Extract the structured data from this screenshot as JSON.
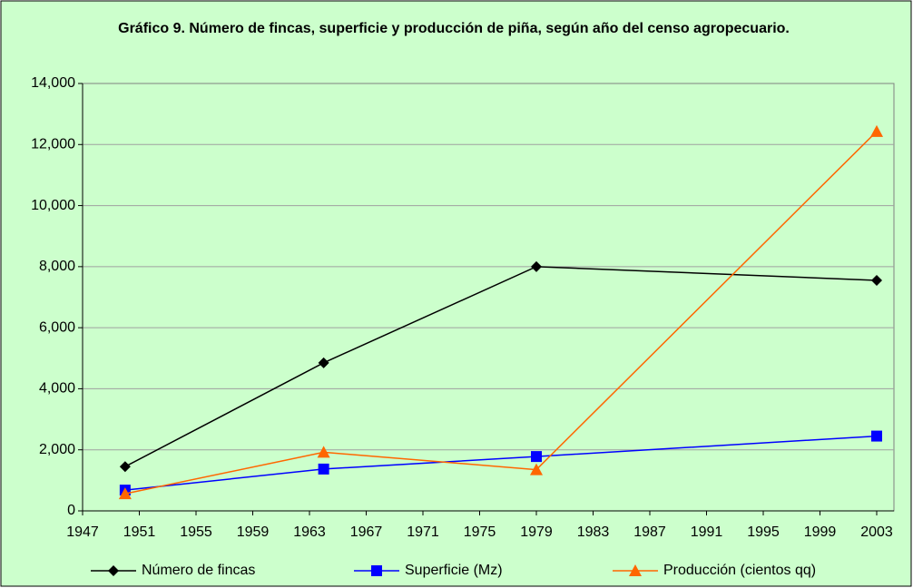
{
  "chart_data": {
    "type": "line",
    "title": "Gráfico 9. Número de fincas, superficie y producción de piña, según año del censo agropecuario.",
    "x": [
      1950,
      1964,
      1979,
      2003
    ],
    "series": [
      {
        "name": "Número de fincas",
        "color": "#000000",
        "marker": "diamond",
        "values": [
          1450,
          4850,
          8000,
          7550
        ]
      },
      {
        "name": "Superficie (Mz)",
        "color": "#0000ff",
        "marker": "square",
        "values": [
          680,
          1370,
          1780,
          2450
        ]
      },
      {
        "name": "Producción (cientos qq)",
        "color": "#ff6600",
        "marker": "triangle",
        "values": [
          560,
          1920,
          1350,
          12430
        ]
      }
    ],
    "xlim": [
      1947,
      2003
    ],
    "xticks": [
      1947,
      1951,
      1955,
      1959,
      1963,
      1967,
      1971,
      1975,
      1979,
      1983,
      1987,
      1991,
      1995,
      1999,
      2003
    ],
    "ylim": [
      0,
      14000
    ],
    "yticks": [
      0,
      {
        "value": 2000,
        "label": "2,000"
      },
      {
        "value": 4000,
        "label": "4,000"
      },
      {
        "value": 6000,
        "label": "6,000"
      },
      {
        "value": 8000,
        "label": "8,000"
      },
      {
        "value": 10000,
        "label": "10,000"
      },
      {
        "value": 12000,
        "label": "12,000"
      },
      {
        "value": 14000,
        "label": "14,000"
      }
    ],
    "grid": true,
    "legend": "bottom"
  }
}
